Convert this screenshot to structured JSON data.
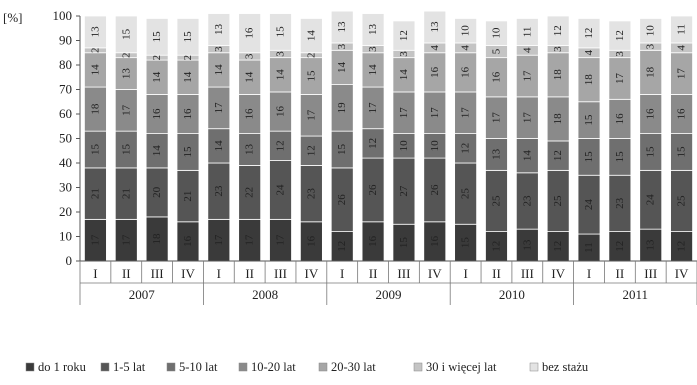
{
  "chart_data": {
    "type": "bar",
    "stacked": true,
    "percent_stacked": true,
    "ylabel": "[%]",
    "ylim": [
      0,
      100
    ],
    "yticks": [
      0,
      10,
      20,
      30,
      40,
      50,
      60,
      70,
      80,
      90,
      100
    ],
    "grid": false,
    "legend_position": "bottom",
    "years": [
      "2007",
      "2008",
      "2009",
      "2010",
      "2011"
    ],
    "categories": [
      "I",
      "II",
      "III",
      "IV",
      "I",
      "II",
      "III",
      "IV",
      "I",
      "II",
      "III",
      "IV",
      "I",
      "II",
      "III",
      "IV",
      "I",
      "II",
      "III",
      "IV"
    ],
    "series": [
      {
        "name": "do 1 roku",
        "color": "#3a3a3a",
        "values": [
          17,
          17,
          18,
          16,
          17,
          17,
          17,
          16,
          12,
          16,
          15,
          16,
          15,
          12,
          13,
          12,
          11,
          12,
          13,
          12
        ]
      },
      {
        "name": "1-5 lat",
        "color": "#555555",
        "values": [
          21,
          21,
          20,
          21,
          23,
          22,
          24,
          23,
          26,
          26,
          27,
          26,
          25,
          25,
          23,
          25,
          24,
          23,
          24,
          25
        ]
      },
      {
        "name": "5-10 lat",
        "color": "#6f6f6f",
        "values": [
          15,
          15,
          14,
          15,
          14,
          13,
          12,
          12,
          15,
          12,
          10,
          10,
          12,
          13,
          14,
          12,
          15,
          15,
          15,
          15
        ]
      },
      {
        "name": "10-20 lat",
        "color": "#8a8a8a",
        "values": [
          18,
          17,
          16,
          16,
          17,
          16,
          16,
          17,
          19,
          17,
          17,
          17,
          17,
          17,
          17,
          18,
          15,
          16,
          16,
          16
        ]
      },
      {
        "name": "20-30 lat",
        "color": "#a6a6a6",
        "values": [
          14,
          13,
          14,
          14,
          14,
          14,
          14,
          15,
          14,
          14,
          14,
          16,
          16,
          16,
          17,
          18,
          18,
          17,
          18,
          17
        ]
      },
      {
        "name": "30 i więcej lat",
        "color": "#c4c4c4",
        "values": [
          2,
          2,
          2,
          2,
          3,
          3,
          3,
          2,
          3,
          3,
          3,
          4,
          4,
          5,
          4,
          3,
          4,
          3,
          3,
          4
        ]
      },
      {
        "name": "bez stażu",
        "color": "#e3e3e3",
        "values": [
          13,
          15,
          15,
          15,
          13,
          16,
          15,
          14,
          13,
          13,
          12,
          13,
          10,
          10,
          11,
          12,
          12,
          12,
          10,
          11
        ]
      }
    ]
  }
}
